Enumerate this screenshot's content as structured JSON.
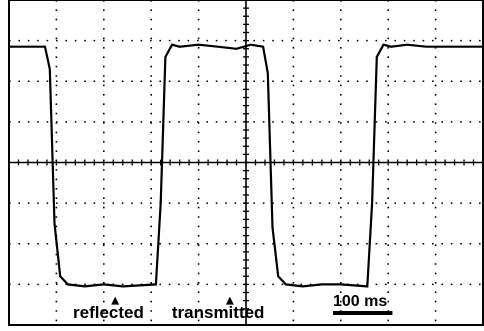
{
  "chart_data": {
    "type": "line",
    "title": "",
    "xlabel": "",
    "ylabel": "",
    "grid": true,
    "grid_divisions": {
      "x": 10,
      "y": 8
    },
    "time_per_division_ms": 50,
    "xlim": [
      0,
      500
    ],
    "ylim": [
      -4,
      4
    ],
    "series": [
      {
        "values_description": "square wave",
        "x": [
          0,
          38,
          43,
          48,
          54,
          62,
          80,
          100,
          120,
          155,
          160,
          165,
          172,
          180,
          200,
          220,
          240,
          255,
          268,
          273,
          278,
          284,
          292,
          310,
          330,
          350,
          378,
          383,
          388,
          395,
          403,
          420,
          440,
          470,
          500
        ],
        "y": [
          2.85,
          2.85,
          2.3,
          -1.5,
          -2.8,
          -3.0,
          -3.05,
          -3.0,
          -3.05,
          -3.0,
          -1.0,
          2.6,
          2.9,
          2.85,
          2.9,
          2.85,
          2.8,
          2.9,
          2.85,
          2.2,
          -1.6,
          -2.8,
          -3.0,
          -3.05,
          -3.0,
          -3.0,
          -3.05,
          -1.0,
          2.6,
          2.9,
          2.85,
          2.9,
          2.85,
          2.85,
          2.85
        ]
      }
    ],
    "annotations": [
      {
        "text": "reflected",
        "x": 112,
        "arrow_to": -3.3
      },
      {
        "text": "transmitted",
        "x": 233,
        "arrow_to": -3.3
      }
    ],
    "scale_bar": {
      "label": "100 ms",
      "length_ms": 100
    }
  }
}
